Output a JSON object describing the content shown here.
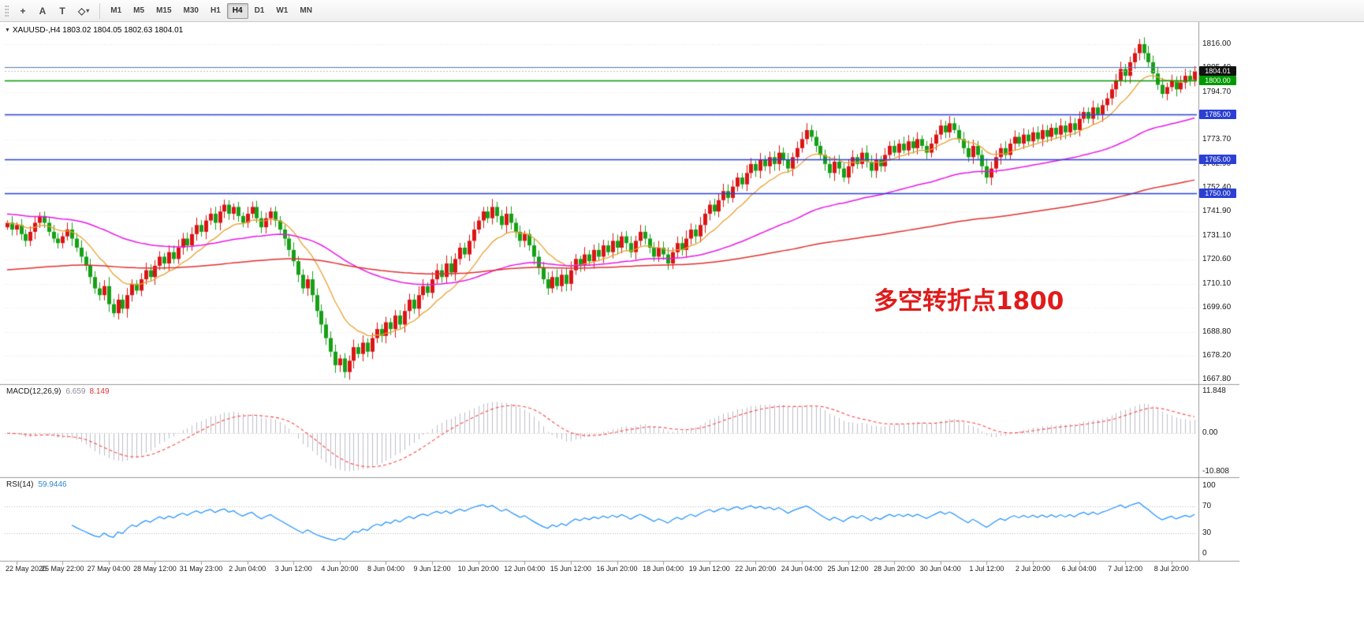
{
  "toolbar": {
    "tools": [
      {
        "name": "crosshair",
        "glyph": "+"
      },
      {
        "name": "text-label",
        "glyph": "A"
      },
      {
        "name": "text",
        "glyph": "T"
      },
      {
        "name": "shapes",
        "glyph": "◇"
      }
    ],
    "shapes_caret": "▾",
    "timeframes": [
      {
        "label": "M1",
        "active": false
      },
      {
        "label": "M5",
        "active": false
      },
      {
        "label": "M15",
        "active": false
      },
      {
        "label": "M30",
        "active": false
      },
      {
        "label": "H1",
        "active": false
      },
      {
        "label": "H4",
        "active": true
      },
      {
        "label": "D1",
        "active": false
      },
      {
        "label": "W1",
        "active": false
      },
      {
        "label": "MN",
        "active": false
      }
    ]
  },
  "chart": {
    "marker": "▼",
    "title": "XAUUSD-,H4  1803.02 1804.05 1802.63 1804.01",
    "annotation": {
      "text": "多空转折点1800",
      "color": "#e01b1b"
    },
    "last_price": {
      "value": 1804.01,
      "label": "1804.01",
      "badge_color": "#111111"
    },
    "levels": [
      {
        "value": 1800.0,
        "label": "1800.00",
        "color": "#009900"
      },
      {
        "value": 1785.0,
        "label": "1785.00",
        "color": "#2b3fd4"
      },
      {
        "value": 1765.0,
        "label": "1765.00",
        "color": "#2b3fd4"
      },
      {
        "value": 1750.0,
        "label": "1750.00",
        "color": "#2b3fd4"
      }
    ],
    "extra_line": {
      "value": 1806.0,
      "color": "#5a7fb5"
    },
    "price_axis": [
      1816.0,
      1805.4,
      1794.7,
      1784.1,
      1773.7,
      1762.9,
      1752.4,
      1741.9,
      1731.1,
      1720.6,
      1710.1,
      1699.6,
      1688.8,
      1678.2,
      1667.8
    ],
    "scale": {
      "min": 1666,
      "max": 1824
    },
    "colors": {
      "up": "#dc1414",
      "down": "#16a016",
      "grid": "#e5e5e5",
      "ma_fast": "#e8a030",
      "ma_mid": "#e816e8",
      "ma_slow": "#e03030",
      "bid_line": "#bdbdbd"
    }
  },
  "macd": {
    "title": "MACD(12,26,9)",
    "value_main": "6.659",
    "value_signal": "8.149",
    "axis": [
      "11.848",
      "0.00",
      "-10.808"
    ],
    "axis_values": [
      11.848,
      0,
      -10.808
    ],
    "scale": {
      "min": -11.5,
      "max": 12.7
    },
    "hist_color": "#bcbcca",
    "signal_color": "#ff4545",
    "params": {
      "fast": 12,
      "slow": 26,
      "signal": 9
    }
  },
  "rsi": {
    "title": "RSI(14)",
    "value": "59.9446",
    "axis": [
      100,
      70,
      30,
      0
    ],
    "levels": [
      70,
      30
    ],
    "line_color": "#1e90ff",
    "period": 14
  },
  "chart_data": {
    "type": "candlestick",
    "symbol": "XAUUSD-",
    "timeframe": "H4",
    "current_ohlc": {
      "open": 1803.02,
      "high": 1804.05,
      "low": 1802.63,
      "close": 1804.01
    },
    "ylim": [
      1666,
      1824
    ],
    "time_labels": [
      "22 May 2020",
      "25 May 22:00",
      "27 May 04:00",
      "28 May 12:00",
      "31 May 23:00",
      "2 Jun 04:00",
      "3 Jun 12:00",
      "4 Jun 20:00",
      "8 Jun 04:00",
      "9 Jun 12:00",
      "10 Jun 20:00",
      "12 Jun 04:00",
      "15 Jun 12:00",
      "16 Jun 20:00",
      "18 Jun 04:00",
      "19 Jun 12:00",
      "22 Jun 20:00",
      "24 Jun 04:00",
      "25 Jun 12:00",
      "28 Jun 20:00",
      "30 Jun 04:00",
      "1 Jul 12:00",
      "2 Jul 20:00",
      "6 Jul 04:00",
      "7 Jul 12:00",
      "8 Jul 20:00"
    ],
    "closes": [
      1737,
      1734,
      1736,
      1732,
      1729,
      1733,
      1737,
      1740,
      1737,
      1733,
      1730,
      1728,
      1731,
      1734,
      1730,
      1726,
      1722,
      1718,
      1713,
      1708,
      1705,
      1709,
      1701,
      1697,
      1703,
      1699,
      1705,
      1710,
      1707,
      1712,
      1716,
      1713,
      1718,
      1722,
      1719,
      1724,
      1721,
      1726,
      1730,
      1727,
      1732,
      1736,
      1733,
      1738,
      1741,
      1737,
      1742,
      1745,
      1741,
      1744,
      1740,
      1737,
      1741,
      1744,
      1739,
      1735,
      1739,
      1742,
      1738,
      1734,
      1730,
      1725,
      1720,
      1714,
      1708,
      1712,
      1705,
      1698,
      1692,
      1686,
      1680,
      1674,
      1677,
      1671,
      1676,
      1682,
      1679,
      1684,
      1680,
      1686,
      1690,
      1687,
      1693,
      1690,
      1696,
      1692,
      1698,
      1703,
      1699,
      1705,
      1709,
      1706,
      1712,
      1716,
      1713,
      1719,
      1715,
      1721,
      1726,
      1723,
      1729,
      1734,
      1738,
      1742,
      1739,
      1744,
      1740,
      1736,
      1741,
      1737,
      1733,
      1729,
      1732,
      1727,
      1722,
      1717,
      1712,
      1708,
      1713,
      1709,
      1714,
      1710,
      1716,
      1721,
      1718,
      1723,
      1720,
      1725,
      1722,
      1727,
      1724,
      1729,
      1726,
      1731,
      1728,
      1724,
      1729,
      1733,
      1730,
      1726,
      1722,
      1726,
      1723,
      1719,
      1724,
      1728,
      1725,
      1730,
      1734,
      1731,
      1736,
      1741,
      1745,
      1742,
      1747,
      1751,
      1748,
      1753,
      1757,
      1754,
      1759,
      1763,
      1760,
      1765,
      1762,
      1766,
      1763,
      1768,
      1765,
      1761,
      1766,
      1770,
      1774,
      1778,
      1775,
      1771,
      1767,
      1763,
      1759,
      1764,
      1761,
      1757,
      1762,
      1766,
      1763,
      1768,
      1764,
      1760,
      1765,
      1762,
      1767,
      1771,
      1768,
      1772,
      1769,
      1773,
      1770,
      1774,
      1771,
      1768,
      1772,
      1776,
      1780,
      1777,
      1781,
      1778,
      1774,
      1770,
      1766,
      1771,
      1767,
      1762,
      1757,
      1761,
      1766,
      1770,
      1767,
      1772,
      1775,
      1772,
      1776,
      1773,
      1777,
      1774,
      1778,
      1775,
      1779,
      1776,
      1780,
      1777,
      1781,
      1778,
      1783,
      1786,
      1783,
      1788,
      1785,
      1789,
      1792,
      1796,
      1800,
      1805,
      1802,
      1808,
      1812,
      1816,
      1812,
      1808,
      1803,
      1798,
      1794,
      1797,
      1800,
      1796,
      1799,
      1802,
      1800,
      1804
    ]
  }
}
